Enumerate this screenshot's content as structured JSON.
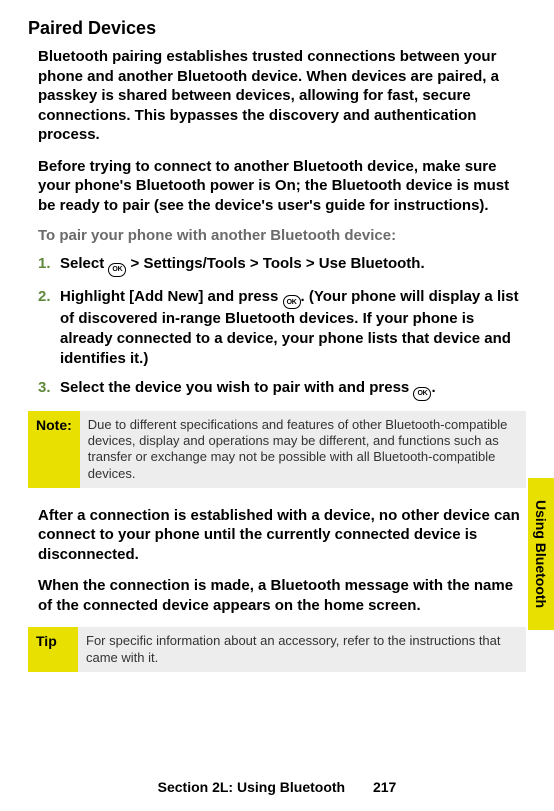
{
  "title": "Paired Devices",
  "para1": "Bluetooth pairing establishes trusted connections between your phone and another Bluetooth device. When devices are paired, a passkey is shared between devices, allowing for fast, secure connections. This bypasses the discovery and authentication process.",
  "para2_pre": "Before trying to connect to another Bluetooth device, make sure your phone's Bluetooth power is ",
  "para2_bold": "On",
  "para2_post": "; the Bluetooth device is must be ready to pair (see the device's user's guide for instructions).",
  "instruction": "To pair your phone with another Bluetooth device:",
  "key_label": "OK",
  "steps": {
    "s1": {
      "num": "1.",
      "pre": "Select ",
      "path": " > Settings/Tools > Tools > Use Bluetooth",
      "post": "."
    },
    "s2": {
      "num": "2.",
      "pre": "Highlight ",
      "bold": "[Add New]",
      "mid": " and press ",
      "post": ". (Your phone will display a list of discovered in-range Bluetooth devices. If your phone is already connected to a device, your phone lists that device and identifies it.)"
    },
    "s3": {
      "num": "3.",
      "pre": "Select the device you wish to pair with and press ",
      "post": "."
    }
  },
  "note": {
    "label": "Note:",
    "body": "Due to different specifications and features of other Bluetooth-compatible devices, display and operations may be different, and functions such as transfer or exchange may not be possible with all Bluetooth-compatible devices."
  },
  "para3": "After a connection is established with a device, no other device can connect to your phone until the currently connected device is disconnected.",
  "para4": "When the connection is made, a Bluetooth message with the name of the connected device appears on the home screen.",
  "tip": {
    "label": "Tip",
    "body": "For specific information about an accessory, refer to the instructions that came with it."
  },
  "side_tab": "Using Bluetooth",
  "footer": {
    "section": "Section 2L: Using Bluetooth",
    "page": "217"
  }
}
